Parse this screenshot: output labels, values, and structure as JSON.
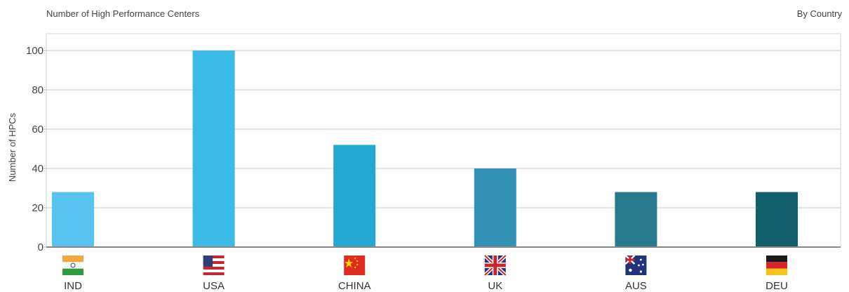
{
  "chart_data": {
    "type": "bar",
    "title": "Number of High Performance Centers",
    "subtitle": "By Country",
    "xlabel": "",
    "ylabel": "Number of HPCs",
    "ylim": [
      0,
      100
    ],
    "yticks": [
      0,
      20,
      40,
      60,
      80,
      100
    ],
    "grid": true,
    "categories": [
      "IND",
      "USA",
      "CHINA",
      "UK",
      "AUS",
      "DEU"
    ],
    "values": [
      28,
      100,
      52,
      40,
      28,
      28
    ],
    "bar_colors": [
      "#58c3ee",
      "#3dbbe8",
      "#23a8d3",
      "#3192b6",
      "#277a8e",
      "#135e6b"
    ],
    "flags": [
      "india-flag-icon",
      "usa-flag-icon",
      "china-flag-icon",
      "uk-flag-icon",
      "australia-flag-icon",
      "germany-flag-icon"
    ]
  }
}
